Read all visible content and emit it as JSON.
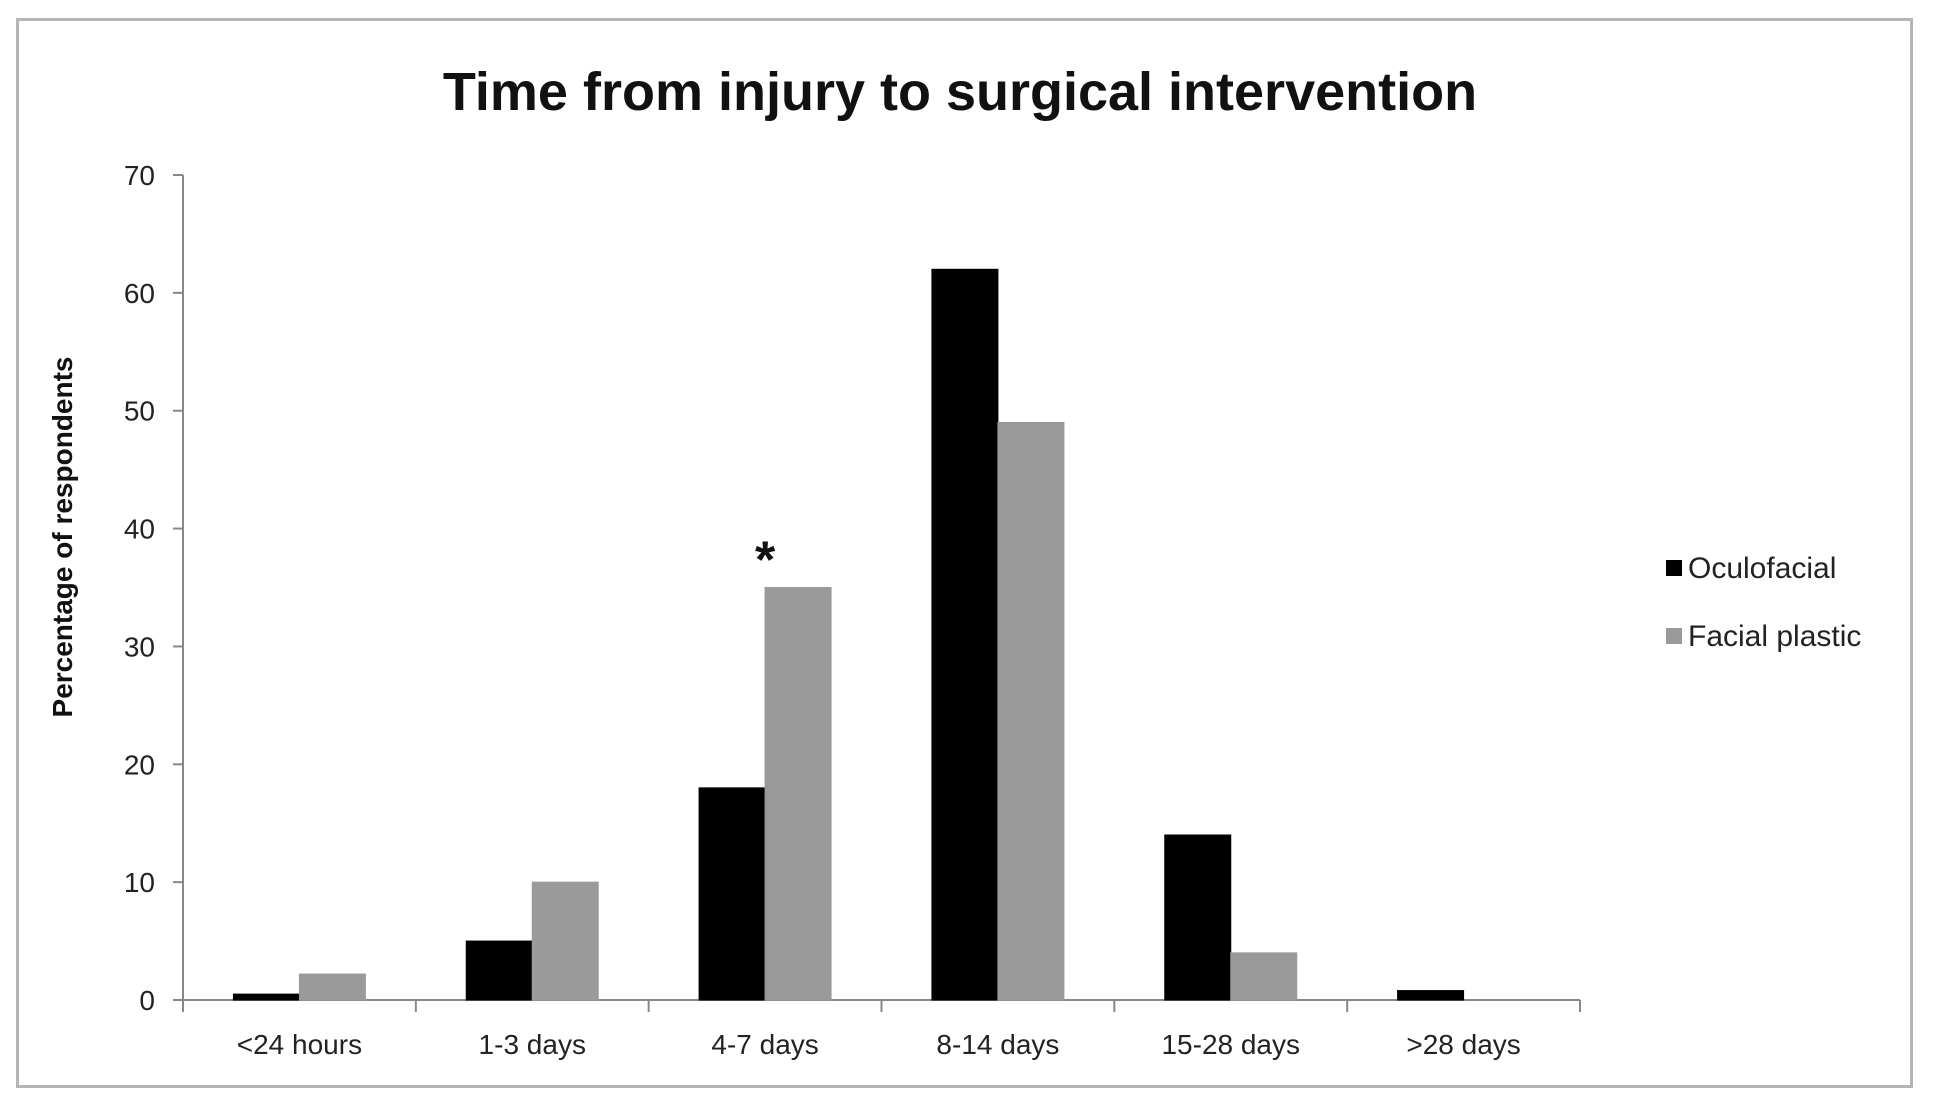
{
  "chart_data": {
    "type": "bar",
    "title": "Time from injury to surgical intervention",
    "xlabel": "",
    "ylabel": "Percentage of respondents",
    "ylim": [
      0,
      70
    ],
    "yticks": [
      0,
      10,
      20,
      30,
      40,
      50,
      60,
      70
    ],
    "categories": [
      "<24 hours",
      "1-3 days",
      "4-7 days",
      "8-14 days",
      "15-28 days",
      ">28 days"
    ],
    "series": [
      {
        "name": "Oculofacial",
        "color": "#000000",
        "values": [
          0.5,
          5,
          18,
          62,
          14,
          0.8
        ]
      },
      {
        "name": "Facial plastic",
        "color": "#9a9a9a",
        "values": [
          2.2,
          10,
          35,
          49,
          4,
          0
        ]
      }
    ],
    "annotations": [
      {
        "text": "*",
        "category": "4-7 days"
      }
    ],
    "legend": "right",
    "grid": false
  }
}
